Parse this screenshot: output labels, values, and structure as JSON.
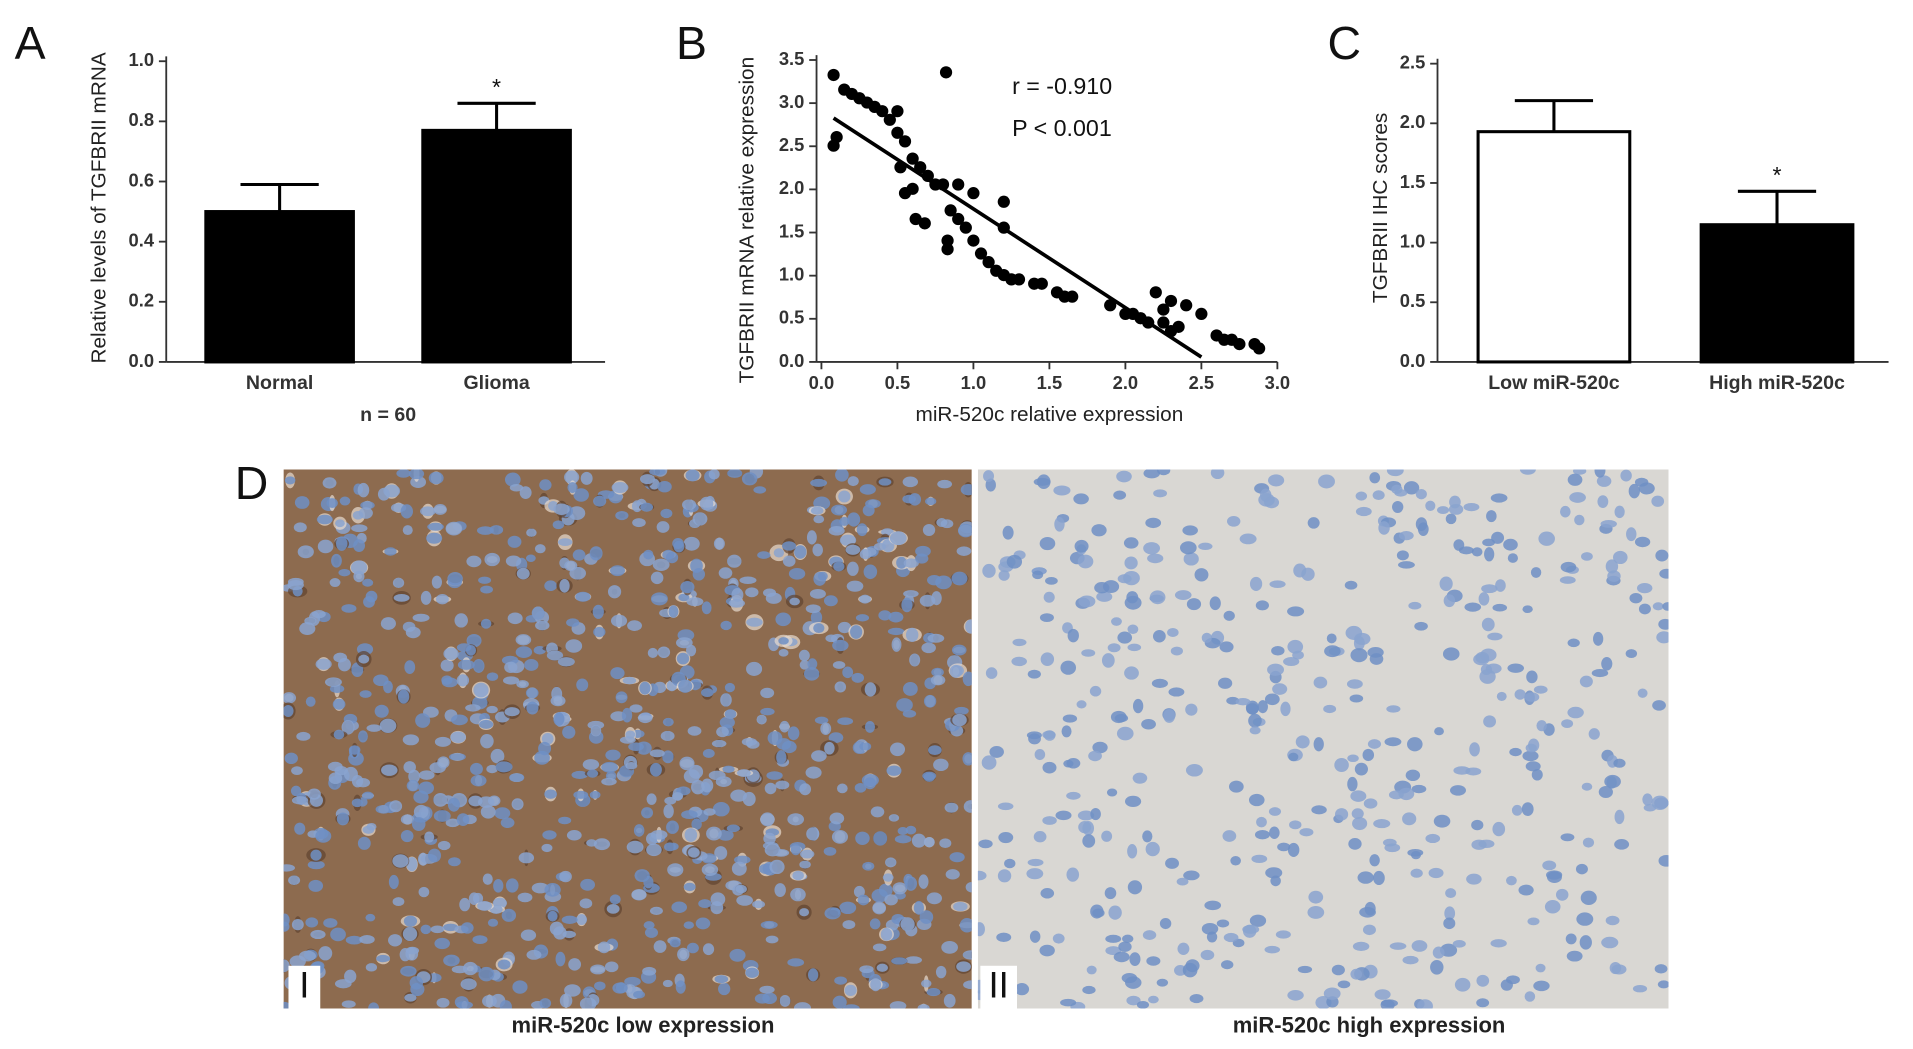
{
  "chart_data": [
    {
      "type": "bar",
      "panel": "A",
      "ylabel": "Relative levels of TGFBRII mRNA",
      "categories": [
        "Normal",
        "Glioma"
      ],
      "values": [
        0.5,
        0.77
      ],
      "errors": [
        0.09,
        0.09
      ],
      "colors": [
        "#000000",
        "#000000"
      ],
      "significance": [
        null,
        "*"
      ],
      "note": "n = 60",
      "ylim": [
        0,
        1
      ],
      "yticks": [
        {
          "value": 0,
          "label": "0.0"
        },
        0.2,
        0.4,
        0.6,
        0.8,
        {
          "value": 1,
          "label": "1.0"
        }
      ]
    },
    {
      "type": "scatter",
      "panel": "B",
      "xlabel": "miR-520c relative expression",
      "ylabel": "TGFBRII mRNA relative expression",
      "annotations": [
        "r = -0.910",
        "P < 0.001"
      ],
      "color": "#000000",
      "x": [
        0.08,
        0.08,
        0.1,
        0.15,
        0.2,
        0.25,
        0.3,
        0.35,
        0.4,
        0.45,
        0.5,
        0.5,
        0.55,
        0.52,
        0.55,
        0.6,
        0.6,
        0.65,
        0.7,
        0.62,
        0.68,
        0.75,
        0.8,
        0.82,
        0.83,
        0.83,
        0.85,
        0.9,
        0.9,
        0.95,
        1.0,
        1.0,
        1.05,
        1.1,
        1.15,
        1.2,
        1.2,
        1.2,
        1.25,
        1.3,
        1.4,
        1.45,
        1.55,
        1.6,
        1.65,
        1.9,
        2.0,
        2.05,
        2.1,
        2.15,
        2.2,
        2.25,
        2.25,
        2.3,
        2.3,
        2.35,
        2.4,
        2.5,
        2.6,
        2.65,
        2.7,
        2.75,
        2.85,
        2.88
      ],
      "y": [
        3.27,
        2.45,
        2.55,
        3.1,
        3.05,
        3.0,
        2.95,
        2.9,
        2.85,
        2.75,
        2.85,
        2.6,
        2.5,
        2.2,
        1.9,
        1.95,
        2.3,
        2.2,
        2.1,
        1.6,
        1.55,
        2.0,
        2.0,
        3.3,
        1.35,
        1.25,
        1.7,
        1.6,
        2.0,
        1.5,
        1.9,
        1.35,
        1.2,
        1.1,
        1.0,
        1.8,
        1.5,
        0.95,
        0.9,
        0.9,
        0.85,
        0.85,
        0.75,
        0.7,
        0.7,
        0.6,
        0.5,
        0.5,
        0.45,
        0.4,
        0.75,
        0.4,
        0.55,
        0.65,
        0.3,
        0.35,
        0.6,
        0.5,
        0.25,
        0.2,
        0.2,
        0.15,
        0.15,
        0.1
      ],
      "fit_line": {
        "x": [
          0.08,
          2.5
        ],
        "y": [
          2.77,
          0
        ]
      },
      "xlim": [
        0,
        3
      ],
      "ylim": [
        0,
        3.5
      ],
      "xticks": [
        {
          "value": 0,
          "label": "0.0"
        },
        0.5,
        {
          "value": 1,
          "label": "1.0"
        },
        1.5,
        {
          "value": 2,
          "label": "2.0"
        },
        2.5,
        {
          "value": 3,
          "label": "3.0"
        }
      ],
      "yticks": [
        {
          "value": 0,
          "label": "0.0"
        },
        0.5,
        {
          "value": 1,
          "label": "1.0"
        },
        1.5,
        {
          "value": 2,
          "label": "2.0"
        },
        2.5,
        {
          "value": 3,
          "label": "3.0"
        },
        3.5
      ]
    },
    {
      "type": "bar",
      "panel": "C",
      "ylabel": "TGFBRII IHC scores",
      "categories": [
        "Low miR-520c",
        "High miR-520c"
      ],
      "values": [
        1.93,
        1.15
      ],
      "errors": [
        0.26,
        0.28
      ],
      "colors": [
        "#ffffff",
        "#000000"
      ],
      "significance": [
        null,
        "*"
      ],
      "ylim": [
        0,
        2.5
      ],
      "yticks": [
        {
          "value": 0,
          "label": "0.0"
        },
        0.5,
        {
          "value": 1,
          "label": "1.0"
        },
        1.5,
        {
          "value": 2,
          "label": "2.0"
        },
        2.5
      ]
    }
  ],
  "panel_d": {
    "label": "D",
    "images": [
      {
        "label": "I",
        "caption": "miR-520c low expression"
      },
      {
        "label": "II",
        "caption": "miR-520c high expression"
      }
    ]
  }
}
